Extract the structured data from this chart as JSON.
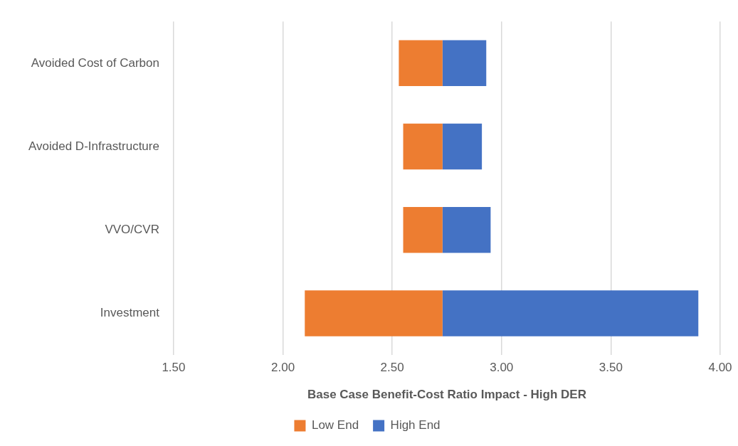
{
  "chart_data": {
    "type": "bar",
    "orientation": "horizontal",
    "stacked": false,
    "xlabel": "Base Case Benefit-Cost Ratio Impact - High DER",
    "categories": [
      "Avoided Cost of Carbon",
      "Avoided D-Infrastructure",
      "VVO/CVR",
      "Investment"
    ],
    "series": [
      {
        "name": "Low End",
        "color": "#ed7d31",
        "base": [
          2.53,
          2.55,
          2.55,
          2.1
        ],
        "values": [
          0.2,
          0.18,
          0.18,
          0.63
        ]
      },
      {
        "name": "High End",
        "color": "#4472c4",
        "base": [
          2.73,
          2.73,
          2.73,
          2.73
        ],
        "values": [
          0.2,
          0.18,
          0.22,
          1.17
        ]
      }
    ],
    "xlim": [
      1.5,
      4.0
    ],
    "xticks": [
      {
        "value": 1.5,
        "label": "1.50"
      },
      {
        "value": 2.0,
        "label": "2.00"
      },
      {
        "value": 2.5,
        "label": "2.50"
      },
      {
        "value": 3.0,
        "label": "3.00"
      },
      {
        "value": 3.5,
        "label": "3.50"
      },
      {
        "value": 4.0,
        "label": "4.00"
      }
    ],
    "grid": "x",
    "legend": "bottom"
  }
}
